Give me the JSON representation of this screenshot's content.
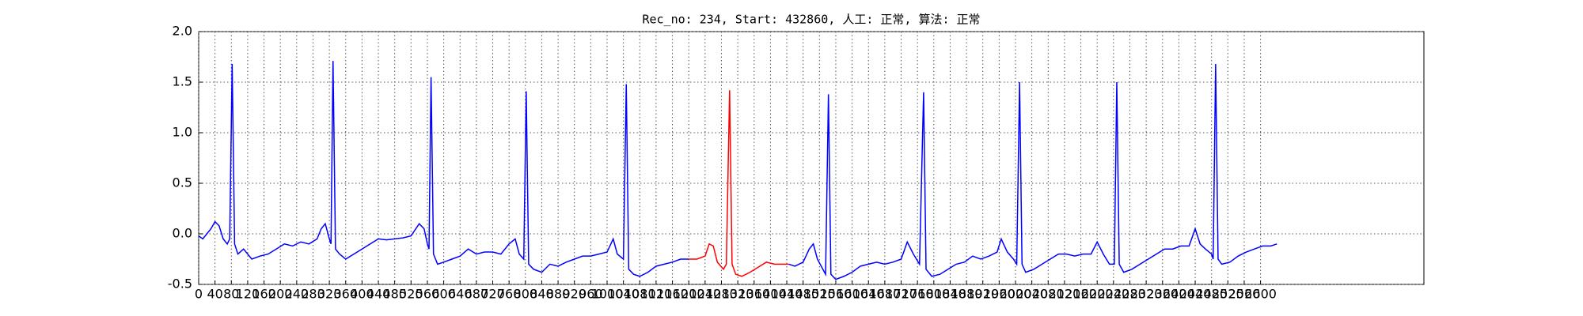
{
  "chart_data": {
    "type": "line",
    "title": "Rec_no: 234, Start: 432860, 人工: 正常, 算法: 正常",
    "xlim": [
      0,
      3000
    ],
    "xticks": [
      0,
      40,
      80,
      120,
      160,
      200,
      240,
      280,
      320,
      360,
      400,
      440,
      480,
      520,
      560,
      600,
      640,
      680,
      720,
      760,
      800,
      840,
      880,
      920,
      960,
      1000,
      1040,
      1080,
      1120,
      1160,
      1200,
      1240,
      1280,
      1320,
      1360,
      1400,
      1440,
      1480,
      1520,
      1560,
      1600,
      1640,
      1680,
      1720,
      1760,
      1800,
      1840,
      1880,
      1920,
      1960,
      2000,
      2040,
      2080,
      2120,
      2160,
      2200,
      2240,
      2280,
      2320,
      2360,
      2400,
      2440,
      2480,
      2520,
      2560,
      2600
    ],
    "ylim": [
      -0.5,
      2.0
    ],
    "yticks": [
      -0.5,
      {
        "value": 0,
        "label": "0.0"
      },
      0.5,
      {
        "value": 1,
        "label": "1.0"
      },
      1.5,
      {
        "value": 2,
        "label": "2.0"
      }
    ],
    "grid": true,
    "series": [
      {
        "color": "#0000ff",
        "x": [
          0,
          10,
          20,
          30,
          40,
          50,
          60,
          70,
          76,
          82,
          88,
          96,
          110,
          130,
          150,
          170,
          190,
          210,
          230,
          250,
          270,
          290,
          300,
          310,
          320,
          324,
          329,
          335,
          345,
          360,
          380,
          400,
          420,
          440,
          460,
          480,
          500,
          520,
          540,
          552,
          560,
          564,
          569,
          575,
          585,
          600,
          620,
          640,
          660,
          680,
          700,
          720,
          740,
          760,
          775,
          785,
          796,
          802,
          808,
          820,
          840,
          860,
          880,
          900,
          920,
          940,
          960,
          980,
          1000,
          1015,
          1025,
          1040,
          1047,
          1053,
          1065,
          1080,
          1100,
          1120,
          1140,
          1160,
          1180,
          1200
        ],
        "values": [
          -0.02,
          -0.05,
          0.0,
          0.05,
          0.12,
          0.08,
          -0.05,
          -0.1,
          -0.05,
          1.68,
          -0.1,
          -0.2,
          -0.15,
          -0.25,
          -0.22,
          -0.2,
          -0.15,
          -0.1,
          -0.12,
          -0.08,
          -0.1,
          -0.05,
          0.05,
          0.1,
          -0.05,
          -0.1,
          1.71,
          -0.15,
          -0.2,
          -0.25,
          -0.2,
          -0.15,
          -0.1,
          -0.05,
          -0.06,
          -0.05,
          -0.04,
          -0.02,
          0.1,
          0.05,
          -0.1,
          -0.15,
          1.55,
          -0.2,
          -0.3,
          -0.28,
          -0.25,
          -0.22,
          -0.15,
          -0.2,
          -0.18,
          -0.18,
          -0.2,
          -0.1,
          -0.05,
          -0.2,
          -0.25,
          1.41,
          -0.3,
          -0.35,
          -0.38,
          -0.3,
          -0.32,
          -0.28,
          -0.25,
          -0.22,
          -0.22,
          -0.2,
          -0.18,
          -0.05,
          -0.2,
          -0.25,
          1.48,
          -0.35,
          -0.4,
          -0.42,
          -0.38,
          -0.32,
          -0.3,
          -0.28,
          -0.25,
          -0.25
        ]
      },
      {
        "color": "#ff0000",
        "x": [
          1200,
          1220,
          1240,
          1250,
          1260,
          1270,
          1285,
          1292,
          1300,
          1306,
          1315,
          1330,
          1350,
          1370,
          1390,
          1410,
          1430,
          1445
        ],
        "values": [
          -0.25,
          -0.25,
          -0.22,
          -0.1,
          -0.12,
          -0.28,
          -0.35,
          -0.3,
          1.42,
          -0.3,
          -0.4,
          -0.42,
          -0.38,
          -0.33,
          -0.28,
          -0.3,
          -0.3,
          -0.3
        ]
      },
      {
        "color": "#0000ff",
        "x": [
          1445,
          1460,
          1480,
          1495,
          1505,
          1515,
          1535,
          1542,
          1548,
          1560,
          1580,
          1600,
          1620,
          1640,
          1660,
          1680,
          1700,
          1720,
          1735,
          1750,
          1765,
          1775,
          1781,
          1795,
          1815,
          1835,
          1855,
          1875,
          1895,
          1915,
          1935,
          1955,
          1965,
          1980,
          1995,
          2003,
          2010,
          2016,
          2025,
          2045,
          2065,
          2085,
          2105,
          2125,
          2145,
          2165,
          2185,
          2200,
          2215,
          2230,
          2242,
          2248,
          2254,
          2265,
          2285,
          2305,
          2325,
          2345,
          2365,
          2385,
          2405,
          2425,
          2440,
          2452,
          2465,
          2480,
          2484,
          2490,
          2496,
          2505,
          2525,
          2545,
          2565,
          2585,
          2605,
          2625,
          2640
        ],
        "values": [
          -0.3,
          -0.32,
          -0.28,
          -0.15,
          -0.1,
          -0.25,
          -0.4,
          1.38,
          -0.4,
          -0.45,
          -0.42,
          -0.38,
          -0.32,
          -0.3,
          -0.28,
          -0.3,
          -0.28,
          -0.25,
          -0.08,
          -0.2,
          -0.3,
          1.4,
          -0.35,
          -0.42,
          -0.4,
          -0.35,
          -0.3,
          -0.28,
          -0.22,
          -0.25,
          -0.22,
          -0.18,
          -0.05,
          -0.18,
          -0.25,
          -0.3,
          1.5,
          -0.3,
          -0.38,
          -0.35,
          -0.3,
          -0.25,
          -0.2,
          -0.2,
          -0.22,
          -0.2,
          -0.2,
          -0.08,
          -0.2,
          -0.3,
          -0.3,
          1.5,
          -0.3,
          -0.38,
          -0.35,
          -0.3,
          -0.25,
          -0.2,
          -0.15,
          -0.15,
          -0.12,
          -0.12,
          0.05,
          -0.1,
          -0.15,
          -0.2,
          -0.25,
          1.68,
          -0.25,
          -0.3,
          -0.28,
          -0.22,
          -0.18,
          -0.15,
          -0.12,
          -0.12,
          -0.1
        ]
      }
    ]
  }
}
